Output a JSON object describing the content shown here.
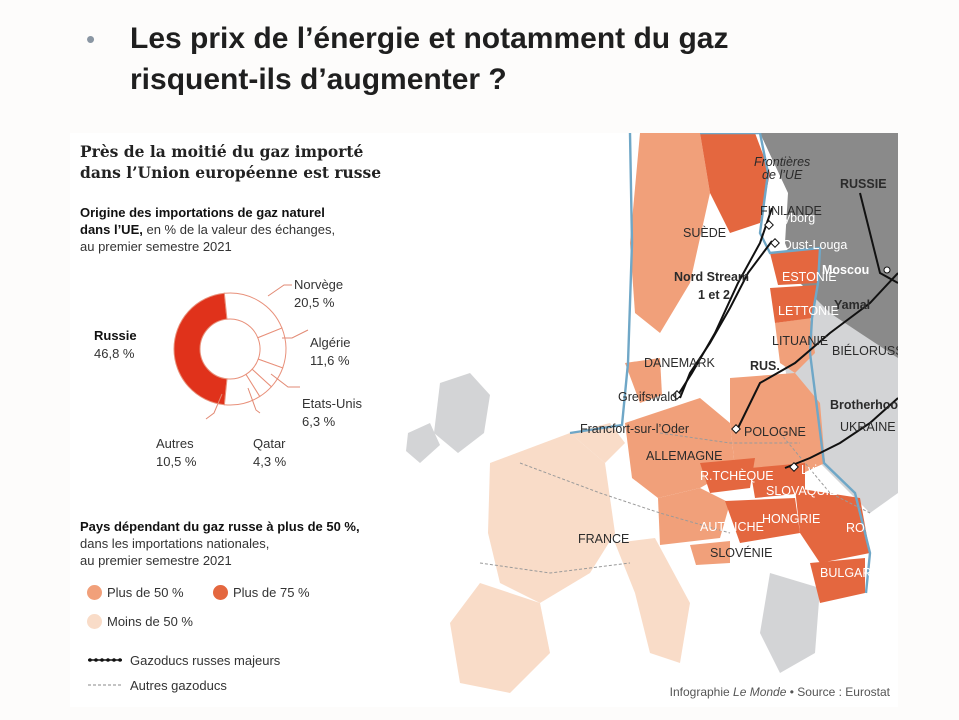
{
  "slide": {
    "bullet": "•",
    "title_line1": "Les prix de l’énergie et notamment du gaz",
    "title_line2": "risquent-ils d’augmenter ?"
  },
  "infographic": {
    "heading_line1": "Près de la moitié du gaz importé",
    "heading_line2": "dans l’Union européenne est russe",
    "sub_line1_bold": "Origine des importations de gaz naturel",
    "sub_line2_bold": "dans l’UE,",
    "sub_line2_rest": " en % de la valeur des échanges,",
    "sub_line3": "au premier semestre 2021",
    "donut": [
      {
        "name": "Russie",
        "value": "46,8 %",
        "share": 46.8,
        "color": "#e0321b"
      },
      {
        "name": "Norvège",
        "value": "20,5 %",
        "share": 20.5,
        "color": "#ffffff"
      },
      {
        "name": "Algérie",
        "value": "11,6 %",
        "share": 11.6,
        "color": "#ffffff"
      },
      {
        "name": "Etats-Unis",
        "value": "6,3 %",
        "share": 6.3,
        "color": "#ffffff"
      },
      {
        "name": "Qatar",
        "value": "4,3 %",
        "share": 4.3,
        "color": "#ffffff"
      },
      {
        "name": "Autres",
        "value": "10,5 %",
        "share": 10.5,
        "color": "#ffffff"
      }
    ],
    "legend_head_bold": "Pays dépendant du gaz russe à plus de 50 %,",
    "legend_head_line2": "dans les importations nationales,",
    "legend_head_line3": "au premier semestre 2021",
    "legend": {
      "over50": "Plus de 50 %",
      "over75": "Plus de 75 %",
      "under50": "Moins de 50 %",
      "color_over50": "#f1a07a",
      "color_over75": "#e4673f",
      "color_under50": "#f9dcc8",
      "pipelines_major": "Gazoducs russes majeurs",
      "pipelines_other": "Autres gazoducs"
    },
    "credit_pre": "Infographie ",
    "credit_italic": "Le Monde",
    "credit_post": " • Source : Eurostat"
  },
  "map": {
    "colors": {
      "sea": "#ffffff",
      "russia": "#8a8a8a",
      "non_eu": "#d3d4d6",
      "eu_border": "#6fa7c7",
      "over75": "#e4673f",
      "over50": "#f1a07a",
      "under50": "#f9dcc8"
    },
    "labels": {
      "frontieres_line1": "Frontières",
      "frontieres_line2": "de l’UE",
      "russie": "RUSSIE",
      "finlande": "FINLANDE",
      "suede": "SUÈDE",
      "vyborg": "Vyborg",
      "oust_louga": "Oust-Louga",
      "moscou": "Moscou",
      "nord_stream_line1": "Nord Stream",
      "nord_stream_line2": "1 et 2",
      "estonie": "ESTONIE",
      "lettonie": "LETTONIE",
      "yamal": "Yamal",
      "lituanie": "LITUANIE",
      "danemark": "DANEMARK",
      "rus": "RUS.",
      "bielorussie": "BIÉLORUSSIE",
      "greifswald": "Greifswald",
      "brotherhood": "Brotherhood",
      "francfort": "Francfort-sur-l’Oder",
      "pologne": "POLOGNE",
      "ukraine": "UKRAINE",
      "allemagne": "ALLEMAGNE",
      "rtcheque": "R.TCHÈQUE",
      "lviv": "Lviv",
      "slovaquie": "SLOVAQUIE",
      "france": "FRANCE",
      "hongrie": "HONGRIE",
      "roumanie": "ROUMANIE",
      "autriche": "AUTRICHE",
      "slovenie": "SLOVÉNIE",
      "bulgarie": "BULGARIE"
    }
  }
}
